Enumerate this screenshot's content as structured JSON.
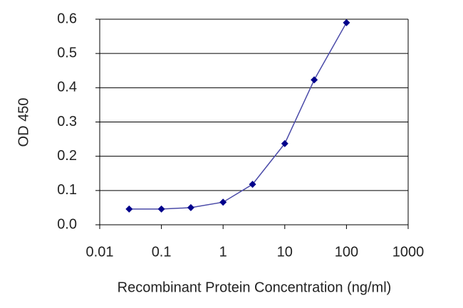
{
  "chart_data": {
    "type": "line",
    "x_label": "Recombinant Protein Concentration (ng/ml)",
    "y_label": "OD 450",
    "x": [
      0.03,
      0.1,
      0.3,
      1,
      3,
      10,
      30,
      100
    ],
    "series": [
      {
        "color": "#00008b",
        "values": [
          0.046,
          0.046,
          0.05,
          0.066,
          0.118,
          0.237,
          0.423,
          0.59
        ]
      }
    ],
    "x_log": true,
    "xlim": [
      0.01,
      1000
    ],
    "xticks": [
      0.01,
      0.1,
      1,
      10,
      100,
      1000
    ],
    "ylim": [
      0,
      0.6
    ],
    "yticks": [
      {
        "value": 0,
        "label": "0.0"
      },
      0.1,
      0.2,
      0.3,
      0.4,
      0.5,
      0.6
    ],
    "grid": true
  }
}
